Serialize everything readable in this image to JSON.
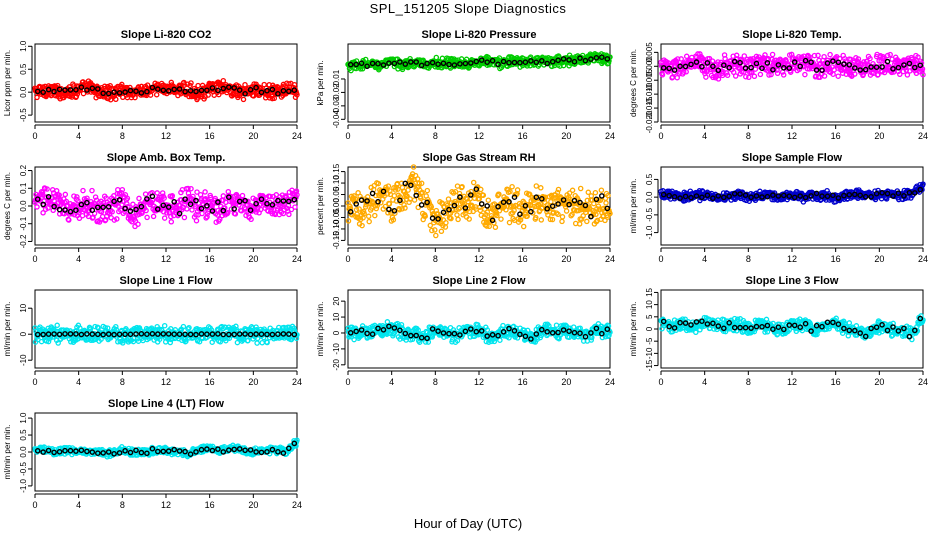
{
  "page": {
    "title": "SPL_151205  Slope Diagnostics",
    "xlabel": "Hour of Day (UTC)"
  },
  "chart_data": [
    {
      "type": "scatter",
      "title": "Slope Li-820 CO2",
      "ylabel": "Licor ppm per min.",
      "xlim": [
        0,
        24
      ],
      "xticks": [
        0,
        4,
        8,
        12,
        16,
        20,
        24
      ],
      "ylim": [
        -0.65,
        1.05
      ],
      "yticks": [
        -0.5,
        0.0,
        0.5,
        1.0
      ],
      "yticklabels": [
        "-0.5",
        "0.0",
        "0.5",
        "1.0"
      ],
      "colors": {
        "all": "#ff0000",
        "hourly": "#000000"
      },
      "spread": {
        "all": 0.12,
        "hourly": 0.06
      },
      "series": [
        {
          "values": [
            0.0,
            0.05,
            0.0,
            0.02,
            0.05,
            0.1,
            0.0,
            -0.02,
            0.05,
            0.0,
            0.02,
            0.05,
            0.1,
            0.05,
            0.05,
            0.0,
            0.05,
            0.1,
            0.05,
            0.0,
            0.05,
            0.02,
            0.0,
            0.05,
            0.0
          ]
        }
      ]
    },
    {
      "type": "scatter",
      "title": "Slope Li-820 Pressure",
      "ylabel": "kPa per min.",
      "xlim": [
        0,
        24
      ],
      "xticks": [
        0,
        4,
        8,
        12,
        16,
        20,
        24
      ],
      "ylim": [
        -0.042,
        0.016
      ],
      "yticks": [
        -0.04,
        -0.03,
        -0.02,
        -0.01
      ],
      "yticklabels": [
        "-0.04",
        "-0.03",
        "-0.02",
        "-0.01"
      ],
      "colors": {
        "all": "#00cc00",
        "hourly": "#000000"
      },
      "spread": {
        "all": 0.003,
        "hourly": 0.0015
      },
      "series": [
        {
          "values": [
            -0.001,
            0.0,
            0.001,
            0.001,
            0.002,
            0.001,
            0.002,
            0.001,
            0.002,
            0.001,
            0.002,
            0.002,
            0.003,
            0.003,
            0.002,
            0.003,
            0.003,
            0.004,
            0.003,
            0.003,
            0.004,
            0.004,
            0.005,
            0.006,
            0.004
          ]
        }
      ]
    },
    {
      "type": "scatter",
      "title": "Slope Li-820 Temp.",
      "ylabel": "degrees C per min.",
      "xlim": [
        0,
        24
      ],
      "xticks": [
        0,
        4,
        8,
        12,
        16,
        20,
        24
      ],
      "ylim": [
        -0.02,
        0.008
      ],
      "yticks": [
        -0.02,
        -0.015,
        -0.01,
        -0.005,
        0.0,
        0.005
      ],
      "yticklabels": [
        "-0.020",
        "-0.015",
        "-0.010",
        "-0.005",
        "0.000",
        "0.005"
      ],
      "colors": {
        "all": "#ff00ff",
        "hourly": "#000000"
      },
      "spread": {
        "all": 0.003,
        "hourly": 0.0015
      },
      "series": [
        {
          "values": [
            0.0,
            -0.001,
            0.0,
            0.001,
            0.0,
            -0.001,
            0.0,
            0.001,
            0.0,
            0.001,
            0.0,
            0.0,
            0.001,
            0.001,
            0.0,
            0.0,
            0.001,
            0.0,
            0.0,
            0.0,
            0.001,
            0.0,
            0.0,
            0.001,
            0.0
          ]
        }
      ]
    },
    {
      "type": "scatter",
      "title": "Slope Amb. Box Temp.",
      "ylabel": "degrees C per min.",
      "xlim": [
        0,
        24
      ],
      "xticks": [
        0,
        4,
        8,
        12,
        16,
        20,
        24
      ],
      "ylim": [
        -0.22,
        0.22
      ],
      "yticks": [
        -0.2,
        -0.1,
        0.0,
        0.1,
        0.2
      ],
      "yticklabels": [
        "-0.2",
        "-0.1",
        "0.0",
        "0.1",
        "0.2"
      ],
      "colors": {
        "all": "#ff00ff",
        "hourly": "#000000"
      },
      "spread": {
        "all": 0.06,
        "hourly": 0.04
      },
      "series": [
        {
          "values": [
            0.0,
            0.05,
            0.02,
            -0.02,
            0.0,
            0.02,
            -0.03,
            0.0,
            0.02,
            -0.05,
            0.0,
            0.02,
            0.0,
            -0.02,
            0.03,
            0.0,
            0.0,
            -0.02,
            0.02,
            0.0,
            -0.02,
            0.02,
            0.0,
            0.02,
            0.05
          ]
        }
      ]
    },
    {
      "type": "scatter",
      "title": "Slope Gas Stream RH",
      "ylabel": "percent per min.",
      "xlim": [
        0,
        24
      ],
      "xticks": [
        0,
        4,
        8,
        12,
        16,
        20,
        24
      ],
      "ylim": [
        -0.17,
        0.17
      ],
      "yticks": [
        -0.15,
        -0.1,
        -0.05,
        0.0,
        0.05,
        0.1,
        0.15
      ],
      "yticklabels": [
        "-0.15",
        "-0.10",
        "-0.05",
        "0.00",
        "0.05",
        "0.10",
        "0.15"
      ],
      "colors": {
        "all": "#ffaa00",
        "hourly": "#000000"
      },
      "spread": {
        "all": 0.06,
        "hourly": 0.04
      },
      "series": [
        {
          "values": [
            0.0,
            -0.02,
            0.02,
            0.05,
            0.0,
            0.05,
            0.1,
            0.0,
            -0.05,
            -0.02,
            0.02,
            0.0,
            0.05,
            -0.05,
            0.0,
            0.02,
            -0.02,
            0.0,
            0.02,
            0.0,
            0.02,
            0.0,
            -0.02,
            0.02,
            0.0
          ]
        }
      ]
    },
    {
      "type": "scatter",
      "title": "Slope Sample Flow",
      "ylabel": "ml/min per min.",
      "xlim": [
        0,
        24
      ],
      "xticks": [
        0,
        4,
        8,
        12,
        16,
        20,
        24
      ],
      "ylim": [
        -1.35,
        0.85
      ],
      "yticks": [
        -1.0,
        -0.5,
        0.0,
        0.5
      ],
      "yticklabels": [
        "-1.0",
        "-0.5",
        "0.0",
        "0.5"
      ],
      "colors": {
        "all": "#0000cc",
        "hourly": "#000000"
      },
      "spread": {
        "all": 0.1,
        "hourly": 0.06
      },
      "series": [
        {
          "values": [
            0.05,
            0.05,
            0.0,
            0.05,
            0.05,
            0.0,
            0.0,
            0.05,
            0.0,
            0.05,
            0.05,
            0.0,
            0.05,
            0.0,
            0.05,
            0.05,
            0.0,
            0.05,
            0.1,
            0.05,
            0.05,
            0.1,
            0.05,
            0.1,
            0.3
          ]
        }
      ]
    },
    {
      "type": "scatter",
      "title": "Slope Line 1 Flow",
      "ylabel": "ml/min per min.",
      "xlim": [
        0,
        24
      ],
      "xticks": [
        0,
        4,
        8,
        12,
        16,
        20,
        24
      ],
      "ylim": [
        -13,
        17
      ],
      "yticks": [
        -10,
        0,
        10
      ],
      "yticklabels": [
        "-10",
        "0",
        "10"
      ],
      "colors": {
        "all": "#00e5ee",
        "hourly": "#000000"
      },
      "spread": {
        "all": 2.5,
        "hourly": 0.15
      },
      "series": [
        {
          "values": [
            0,
            0,
            0,
            0,
            0,
            0,
            0,
            0,
            0,
            0,
            0,
            0,
            0,
            0,
            0,
            0,
            0,
            0,
            0,
            0,
            0,
            0,
            0,
            0,
            0
          ]
        }
      ]
    },
    {
      "type": "scatter",
      "title": "Slope Line 2 Flow",
      "ylabel": "ml/min per min.",
      "xlim": [
        0,
        24
      ],
      "xticks": [
        0,
        4,
        8,
        12,
        16,
        20,
        24
      ],
      "ylim": [
        -22,
        27
      ],
      "yticks": [
        -20,
        -10,
        0,
        10,
        20
      ],
      "yticklabels": [
        "-20",
        "-10",
        "0",
        "10",
        "20"
      ],
      "colors": {
        "all": "#00e5ee",
        "hourly": "#000000"
      },
      "spread": {
        "all": 3.5,
        "hourly": 2
      },
      "series": [
        {
          "values": [
            0,
            0,
            1,
            2,
            3,
            0,
            -1,
            -3,
            2,
            0,
            -2,
            3,
            1,
            -2,
            0,
            2,
            0,
            -3,
            2,
            0,
            3,
            0,
            -2,
            2,
            0
          ]
        }
      ]
    },
    {
      "type": "scatter",
      "title": "Slope Line 3 Flow",
      "ylabel": "ml/min per min.",
      "xlim": [
        0,
        24
      ],
      "xticks": [
        0,
        4,
        8,
        12,
        16,
        20,
        24
      ],
      "ylim": [
        -16,
        16
      ],
      "yticks": [
        -15,
        -10,
        -5,
        0,
        5,
        10,
        15
      ],
      "yticklabels": [
        "-15",
        "-10",
        "-5",
        "0",
        "5",
        "10",
        "15"
      ],
      "colors": {
        "all": "#00e5ee",
        "hourly": "#000000"
      },
      "spread": {
        "all": 2,
        "hourly": 1.5
      },
      "series": [
        {
          "values": [
            2,
            1,
            2,
            1,
            3,
            2,
            1,
            2,
            0,
            2,
            1,
            0,
            1,
            2,
            0,
            1,
            2,
            0,
            -1,
            -2,
            1,
            0,
            -1,
            -2,
            5
          ]
        }
      ]
    },
    {
      "type": "scatter",
      "title": "Slope Line 4 (LT) Flow",
      "ylabel": "ml/min per min.",
      "xlim": [
        0,
        24
      ],
      "xticks": [
        0,
        4,
        8,
        12,
        16,
        20,
        24
      ],
      "ylim": [
        -1.15,
        1.15
      ],
      "yticks": [
        -1.0,
        -0.5,
        0.0,
        0.5,
        1.0
      ],
      "yticklabels": [
        "-1.0",
        "-0.5",
        "0.0",
        "0.5",
        "1.0"
      ],
      "colors": {
        "all": "#00e5ee",
        "hourly": "#000000"
      },
      "spread": {
        "all": 0.08,
        "hourly": 0.06
      },
      "series": [
        {
          "values": [
            0.05,
            0.05,
            0.0,
            0.05,
            0.0,
            0.05,
            0.0,
            -0.05,
            0.05,
            0.0,
            0.0,
            0.05,
            0.05,
            0.0,
            -0.05,
            0.05,
            0.1,
            0.05,
            0.1,
            0.05,
            0.0,
            0.05,
            0.05,
            0.0,
            0.3
          ]
        }
      ]
    }
  ]
}
